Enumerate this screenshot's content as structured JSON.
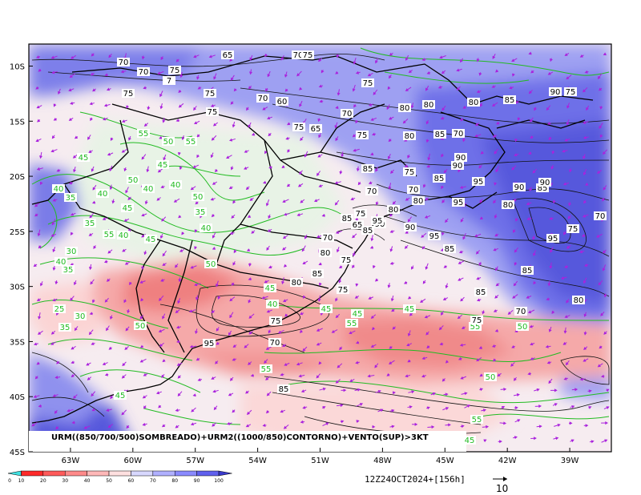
{
  "caption": "URM((850/700/500)SOMBREADO)+URM2((1000/850)CONTORNO)+VENTO(SUP)>3KT",
  "datetime": "12Z24OCT2024+[156h]",
  "vector_reference": "10",
  "map": {
    "lon_range": [
      -65,
      -37
    ],
    "lat_range": [
      -45,
      -8
    ],
    "lon_ticks": [
      "63W",
      "60W",
      "57W",
      "54W",
      "51W",
      "48W",
      "45W",
      "42W",
      "39W"
    ],
    "lat_ticks": [
      "10S",
      "15S",
      "20S",
      "25S",
      "30S",
      "35S",
      "40S",
      "45S"
    ]
  },
  "colorbar": {
    "ticks": [
      "0",
      "10",
      "20",
      "30",
      "40",
      "50",
      "60",
      "70",
      "80",
      "90",
      "100"
    ],
    "colors": [
      "#40e0e0",
      "#ff2a2a",
      "#ff5a5a",
      "#ff8a8a",
      "#ffb8b8",
      "#ffe0e0",
      "#d8d8ff",
      "#b0b0ff",
      "#8a8aff",
      "#6060ee",
      "#3a3acc"
    ]
  },
  "contour_labels": {
    "green": [
      "40",
      "35",
      "45",
      "40",
      "35",
      "55",
      "50",
      "55",
      "50",
      "45",
      "40",
      "50",
      "40",
      "45",
      "35",
      "40",
      "55",
      "30",
      "40",
      "35",
      "25",
      "40",
      "50",
      "45",
      "50",
      "30",
      "35",
      "45",
      "40",
      "45",
      "55",
      "45",
      "50",
      "55",
      "45",
      "55",
      "50",
      "55",
      "45",
      "45"
    ],
    "black": [
      "70",
      "70",
      "7",
      "75",
      "75",
      "75",
      "65",
      "70",
      "70",
      "75",
      "60",
      "75",
      "75",
      "65",
      "70",
      "75",
      "75",
      "80",
      "80",
      "80",
      "85",
      "90",
      "75",
      "70",
      "80",
      "85",
      "90",
      "85",
      "70",
      "75",
      "90",
      "85",
      "95",
      "80",
      "95",
      "90",
      "85",
      "90",
      "70",
      "80",
      "75",
      "65",
      "90",
      "85",
      "70",
      "75",
      "80",
      "95",
      "85",
      "90",
      "95",
      "85",
      "80",
      "85",
      "95",
      "75",
      "70",
      "80",
      "85",
      "70",
      "75",
      "75",
      "70",
      "80",
      "85",
      "95",
      "85",
      "75"
    ]
  },
  "legend_colors": {
    "land_border": "#000000",
    "humidity_contour": "#000000",
    "humidity_contour_low": "#22bb22",
    "wind_vector": "#aa22dd"
  }
}
